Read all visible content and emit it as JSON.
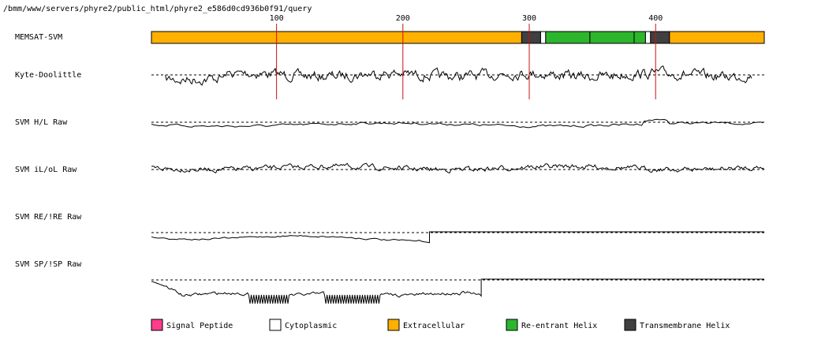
{
  "path_label": "/bmm/www/servers/phyre2/public_html/phyre2_e586d0cd936b0f91/query",
  "chart_data": {
    "type": "line",
    "x_domain": [
      1,
      486
    ],
    "x_ticks": [
      100,
      200,
      300,
      400
    ],
    "grid": "red vertical lines at tick positions across MEMSAT-SVM and Kyte-Doolittle tracks",
    "colors": {
      "extracellular": "#ffb000",
      "cytoplasmic": "#ffffff",
      "reentrant": "#2db52d",
      "transmembrane": "#404040",
      "signal": "#ff3c8c",
      "tick_line": "#d01010",
      "trace": "#000000",
      "baseline": "#000000"
    },
    "memsat_segments": [
      {
        "type": "extracellular",
        "start": 1,
        "end": 294
      },
      {
        "type": "transmembrane",
        "start": 294,
        "end": 309
      },
      {
        "type": "cytoplasmic",
        "start": 309,
        "end": 313
      },
      {
        "type": "reentrant",
        "start": 313,
        "end": 348
      },
      {
        "type": "reentrant",
        "start": 348,
        "end": 383
      },
      {
        "type": "reentrant",
        "start": 383,
        "end": 392
      },
      {
        "type": "cytoplasmic",
        "start": 392,
        "end": 396
      },
      {
        "type": "transmembrane",
        "start": 396,
        "end": 411
      },
      {
        "type": "extracellular",
        "start": 411,
        "end": 486
      }
    ],
    "tracks": [
      {
        "label": "MEMSAT-SVM",
        "kind": "topology"
      },
      {
        "label": "Kyte-Doolittle",
        "kind": "trace"
      },
      {
        "label": "SVM H/L Raw",
        "kind": "trace"
      },
      {
        "label": "SVM iL/oL Raw",
        "kind": "trace"
      },
      {
        "label": "SVM RE/!RE Raw",
        "kind": "trace"
      },
      {
        "label": "SVM SP/!SP Raw",
        "kind": "trace"
      }
    ],
    "legend": [
      {
        "label": "Signal Peptide",
        "key": "signal"
      },
      {
        "label": "Cytoplasmic",
        "key": "cytoplasmic"
      },
      {
        "label": "Extracellular",
        "key": "extracellular"
      },
      {
        "label": "Re-entrant Helix",
        "key": "reentrant"
      },
      {
        "label": "Transmembrane Helix",
        "key": "transmembrane"
      }
    ]
  }
}
